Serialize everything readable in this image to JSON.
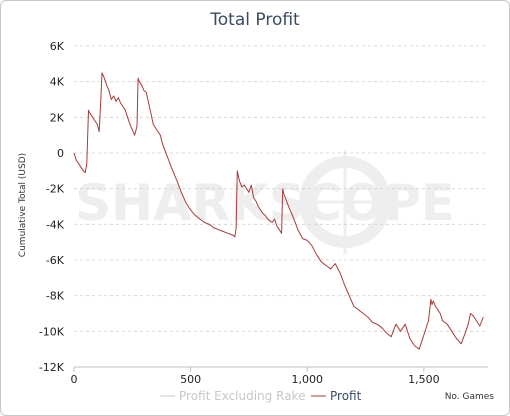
{
  "chart_data": {
    "type": "line",
    "title": "Total Profit",
    "xlabel": "No. Games",
    "ylabel": "Cumulative Total (USD)",
    "xlim": [
      0,
      1775
    ],
    "ylim": [
      -12000,
      6000
    ],
    "x_ticks": [
      0,
      500,
      1000,
      1500
    ],
    "x_tick_labels": [
      "0",
      "500",
      "1,000",
      "1,500"
    ],
    "y_ticks": [
      6000,
      4000,
      2000,
      0,
      -2000,
      -4000,
      -6000,
      -8000,
      -10000,
      -12000
    ],
    "y_tick_labels": [
      "6K",
      "4K",
      "2K",
      "0",
      "-2K",
      "-4K",
      "-6K",
      "-8K",
      "-10K",
      "-12K"
    ],
    "grid": true,
    "legend": "bottom-center",
    "watermark": "SHARKSCOPE",
    "series": [
      {
        "name": "Profit Excluding Rake",
        "color": "#c8c8c8",
        "x": [],
        "y": []
      },
      {
        "name": "Profit",
        "color": "#a83a3a",
        "x": [
          0,
          10,
          20,
          30,
          40,
          48,
          55,
          62,
          65,
          70,
          80,
          90,
          100,
          108,
          115,
          120,
          130,
          140,
          150,
          160,
          170,
          180,
          190,
          200,
          210,
          220,
          230,
          240,
          250,
          260,
          270,
          275,
          280,
          290,
          300,
          310,
          320,
          330,
          340,
          350,
          360,
          370,
          380,
          400,
          420,
          440,
          460,
          480,
          500,
          520,
          540,
          560,
          580,
          600,
          620,
          640,
          660,
          680,
          690,
          695,
          700,
          705,
          710,
          720,
          730,
          740,
          750,
          760,
          770,
          780,
          790,
          800,
          810,
          820,
          830,
          840,
          850,
          860,
          870,
          880,
          890,
          895,
          900,
          920,
          940,
          960,
          980,
          1000,
          1020,
          1040,
          1060,
          1080,
          1100,
          1120,
          1140,
          1160,
          1180,
          1200,
          1220,
          1240,
          1260,
          1280,
          1300,
          1320,
          1340,
          1360,
          1380,
          1400,
          1420,
          1440,
          1460,
          1480,
          1500,
          1520,
          1530,
          1535,
          1540,
          1550,
          1560,
          1570,
          1580,
          1600,
          1620,
          1640,
          1660,
          1680,
          1690,
          1700,
          1710,
          1720,
          1740,
          1755
        ],
        "y": [
          0,
          -400,
          -600,
          -800,
          -1000,
          -1100,
          -600,
          2400,
          2300,
          2200,
          2000,
          1800,
          1600,
          1200,
          3000,
          4500,
          4200,
          3800,
          3500,
          3000,
          3200,
          2900,
          3100,
          2800,
          2600,
          2400,
          2000,
          1600,
          1300,
          1000,
          1500,
          4200,
          4000,
          3800,
          3500,
          3400,
          2800,
          2200,
          1600,
          1400,
          1200,
          1000,
          500,
          -200,
          -900,
          -1500,
          -2200,
          -2800,
          -3200,
          -3500,
          -3700,
          -3900,
          -4000,
          -4200,
          -4300,
          -4400,
          -4500,
          -4600,
          -4700,
          -4200,
          -1000,
          -1300,
          -1600,
          -1900,
          -1800,
          -2000,
          -2200,
          -1800,
          -2500,
          -2700,
          -3000,
          -3200,
          -3400,
          -3500,
          -3700,
          -3800,
          -3900,
          -3700,
          -4100,
          -4300,
          -4500,
          -2000,
          -2300,
          -3000,
          -3600,
          -4300,
          -4800,
          -4900,
          -5200,
          -5700,
          -6100,
          -6300,
          -6500,
          -6200,
          -6700,
          -7400,
          -8000,
          -8600,
          -8800,
          -9000,
          -9200,
          -9500,
          -9600,
          -9800,
          -10100,
          -10300,
          -9600,
          -10000,
          -9600,
          -10400,
          -10800,
          -11000,
          -10200,
          -9400,
          -8200,
          -8500,
          -8300,
          -8600,
          -8800,
          -9000,
          -9400,
          -9600,
          -10000,
          -10400,
          -10700,
          -10000,
          -9600,
          -9000,
          -9100,
          -9300,
          -9700,
          -9200
        ]
      }
    ]
  }
}
